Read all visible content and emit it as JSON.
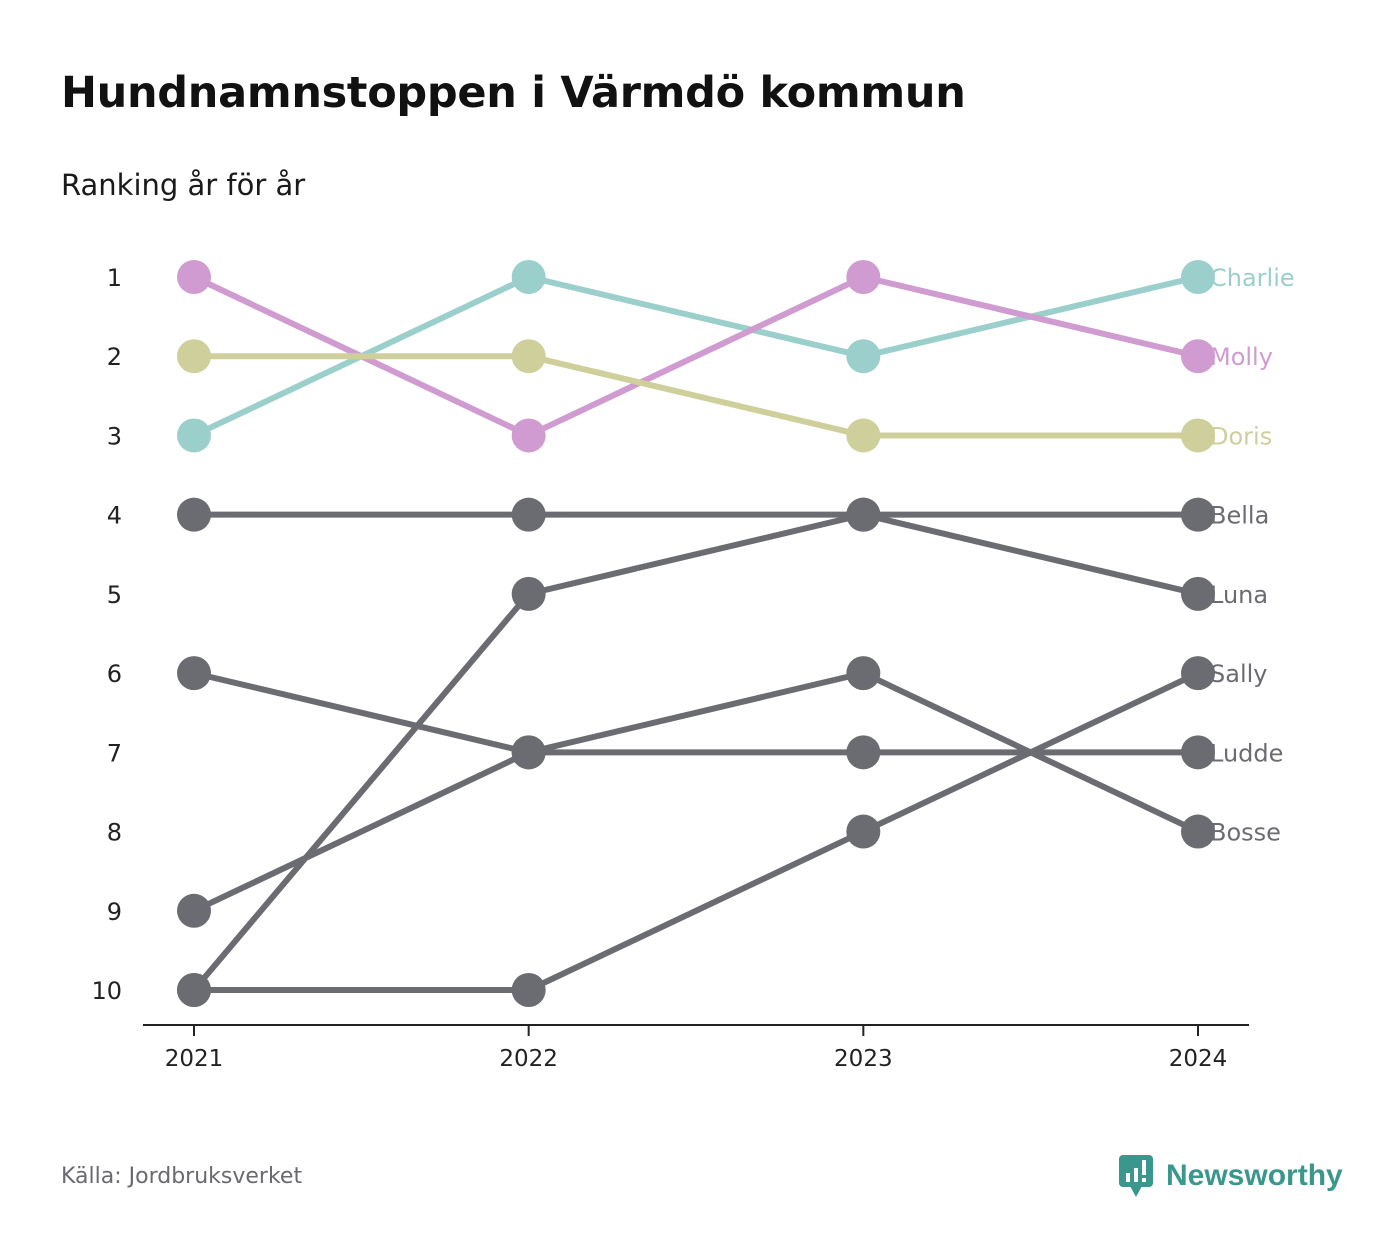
{
  "title": "Hundnamnstoppen i Värmdö kommun",
  "subtitle": "Ranking år för år",
  "source": "Källa: Jordbruksverket",
  "brand": {
    "name": "Newsworthy",
    "icon": "speech-bubble-bar-chart-icon",
    "color": "#3a978d"
  },
  "chart_data": {
    "type": "line",
    "variant": "bump",
    "x": [
      2021,
      2022,
      2023,
      2024
    ],
    "x_tick_labels": [
      "2021",
      "2022",
      "2023",
      "2024"
    ],
    "y_ticks": [
      1,
      2,
      3,
      4,
      5,
      6,
      7,
      8,
      9,
      10
    ],
    "y_tick_labels": [
      "1",
      "2",
      "3",
      "4",
      "5",
      "6",
      "7",
      "8",
      "9",
      "10"
    ],
    "ylim": [
      1,
      10
    ],
    "y_inverted": true,
    "grid": false,
    "legend": "end-labels",
    "series": [
      {
        "name": "Charlie",
        "values": [
          3,
          1,
          2,
          1
        ],
        "color": "#9bcfcc"
      },
      {
        "name": "Molly",
        "values": [
          1,
          3,
          1,
          2
        ],
        "color": "#cf9bd0"
      },
      {
        "name": "Doris",
        "values": [
          2,
          2,
          3,
          3
        ],
        "color": "#cfcf9b"
      },
      {
        "name": "Bella",
        "values": [
          4,
          4,
          4,
          4
        ],
        "color": "#6b6b72"
      },
      {
        "name": "Luna",
        "values": [
          10,
          5,
          4,
          5
        ],
        "color": "#6b6b72"
      },
      {
        "name": "Sally",
        "values": [
          10,
          10,
          8,
          6
        ],
        "color": "#6b6b72"
      },
      {
        "name": "Ludde",
        "values": [
          6,
          7,
          7,
          7
        ],
        "color": "#6b6b72"
      },
      {
        "name": "Bosse",
        "values": [
          9,
          7,
          6,
          8
        ],
        "color": "#6b6b72"
      }
    ]
  }
}
